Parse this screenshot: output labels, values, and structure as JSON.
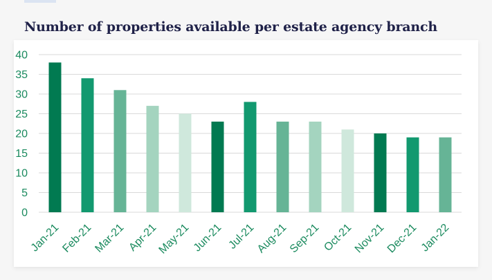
{
  "title": "Number of properties available per estate agency branch",
  "chart_data": {
    "type": "bar",
    "title": "Number of properties available per estate agency branch",
    "xlabel": "",
    "ylabel": "",
    "categories": [
      "Jan-21",
      "Feb-21",
      "Mar-21",
      "Apr-21",
      "May-21",
      "Jun-21",
      "Jul-21",
      "Aug-21",
      "Sep-21",
      "Oct-21",
      "Nov-21",
      "Dec-21",
      "Jan-22"
    ],
    "values": [
      38,
      34,
      31,
      27,
      25,
      23,
      28,
      23,
      23,
      21,
      20,
      19,
      19
    ],
    "ylim": [
      0,
      40
    ],
    "yticks": [
      0,
      5,
      10,
      15,
      20,
      25,
      30,
      35,
      40
    ],
    "grid": true,
    "legend": "none",
    "colors": [
      "#017a51",
      "#12996f",
      "#66b496",
      "#a4d4bf",
      "#cfe8dc",
      "#017a51",
      "#12996f",
      "#66b496",
      "#a4d4bf",
      "#cfe8dc",
      "#017a51",
      "#12996f",
      "#66b496"
    ],
    "grid_color": "#d9d9d9",
    "tick_color": "#1a8a5e"
  }
}
